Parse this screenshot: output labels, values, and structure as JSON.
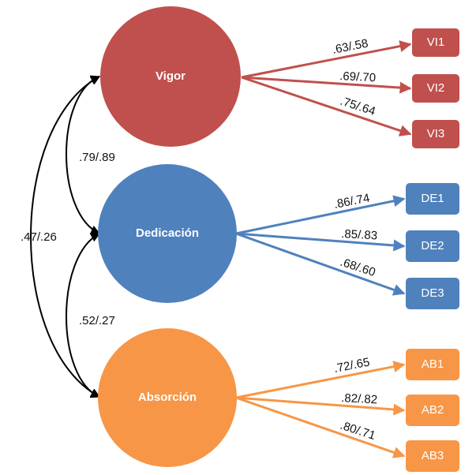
{
  "colors": {
    "vigor": "#c0504d",
    "dedicacion": "#4f81bd",
    "absorcion": "#f79646",
    "covariance": "#000000"
  },
  "factors": {
    "vigor": {
      "label": "Vigor"
    },
    "dedicacion": {
      "label": "Dedicación"
    },
    "absorcion": {
      "label": "Absorción"
    }
  },
  "indicators": {
    "vi1": "VI1",
    "vi2": "VI2",
    "vi3": "VI3",
    "de1": "DE1",
    "de2": "DE2",
    "de3": "DE3",
    "ab1": "AB1",
    "ab2": "AB2",
    "ab3": "AB3"
  },
  "loadings": {
    "vi1": ".63/.58",
    "vi2": ".69/.70",
    "vi3": ".75/.64",
    "de1": ".86/.74",
    "de2": ".85/.83",
    "de3": ".68/.60",
    "ab1": ".72/.65",
    "ab2": ".82/.82",
    "ab3": ".80/.71"
  },
  "correlations": {
    "vigor_dedicacion": ".79/.89",
    "dedicacion_absorcion": ".52/.27",
    "vigor_absorcion": ".47/.26"
  }
}
